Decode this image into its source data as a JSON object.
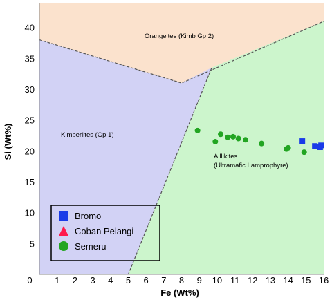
{
  "chart_data": {
    "type": "scatter",
    "xlabel": "Fe (Wt%)",
    "ylabel": "Si (Wt%)",
    "xlim": [
      0,
      16
    ],
    "ylim": [
      0,
      44
    ],
    "xticks": [
      "0",
      "1",
      "2",
      "3",
      "4",
      "5",
      "6",
      "7",
      "8",
      "9",
      "10",
      "11",
      "12",
      "13",
      "14",
      "15",
      "16"
    ],
    "yticks": [
      "5",
      "10",
      "15",
      "20",
      "25",
      "30",
      "35",
      "40"
    ],
    "regions": [
      {
        "name": "Orangeites (Kimb Gp 2)",
        "label_lines": [
          "Orangeites (Kimb Gp 2)"
        ],
        "color": "#fbe2cd",
        "polygon": [
          [
            0,
            44
          ],
          [
            16,
            44
          ],
          [
            16,
            41
          ],
          [
            8,
            31
          ],
          [
            0,
            38
          ]
        ]
      },
      {
        "name": "Kimberlites (Gp 1)",
        "label_lines": [
          "Kimberlites (Gp 1)"
        ],
        "color": "#d2d2f5",
        "polygon": [
          [
            0,
            38
          ],
          [
            8,
            31
          ],
          [
            9.7,
            33.5
          ],
          [
            5,
            0
          ],
          [
            0,
            0
          ]
        ]
      },
      {
        "name": "Aillikites (Ultramafic Lamprophyre)",
        "label_lines": [
          "Aillikites",
          "(Ultramafic Lamprophyre)"
        ],
        "color": "#ccf5cc",
        "polygon": [
          [
            5,
            0
          ],
          [
            9.7,
            33.5
          ],
          [
            16,
            41
          ],
          [
            16,
            0
          ]
        ]
      }
    ],
    "boundaries": [
      [
        [
          0,
          38
        ],
        [
          8,
          31
        ],
        [
          16,
          41
        ]
      ],
      [
        [
          5,
          0
        ],
        [
          9.7,
          33.5
        ]
      ]
    ],
    "series": [
      {
        "name": "Bromo",
        "marker": "square",
        "color": "#1a3be8",
        "points": [
          [
            14.8,
            21.6
          ],
          [
            15.5,
            20.8
          ],
          [
            15.8,
            20.6
          ],
          [
            15.85,
            20.9
          ]
        ]
      },
      {
        "name": "Coban Pelangi",
        "marker": "triangle",
        "color": "#ff1a4d",
        "points": []
      },
      {
        "name": "Semeru",
        "marker": "circle",
        "color": "#22a522",
        "points": [
          [
            8.9,
            23.3
          ],
          [
            9.9,
            21.5
          ],
          [
            10.2,
            22.7
          ],
          [
            10.6,
            22.2
          ],
          [
            10.9,
            22.3
          ],
          [
            11.2,
            22.0
          ],
          [
            11.6,
            21.8
          ],
          [
            12.5,
            21.2
          ],
          [
            13.9,
            20.3
          ],
          [
            14.0,
            20.5
          ],
          [
            14.9,
            19.8
          ]
        ]
      }
    ],
    "legend": {
      "position": "bottom-left"
    }
  }
}
